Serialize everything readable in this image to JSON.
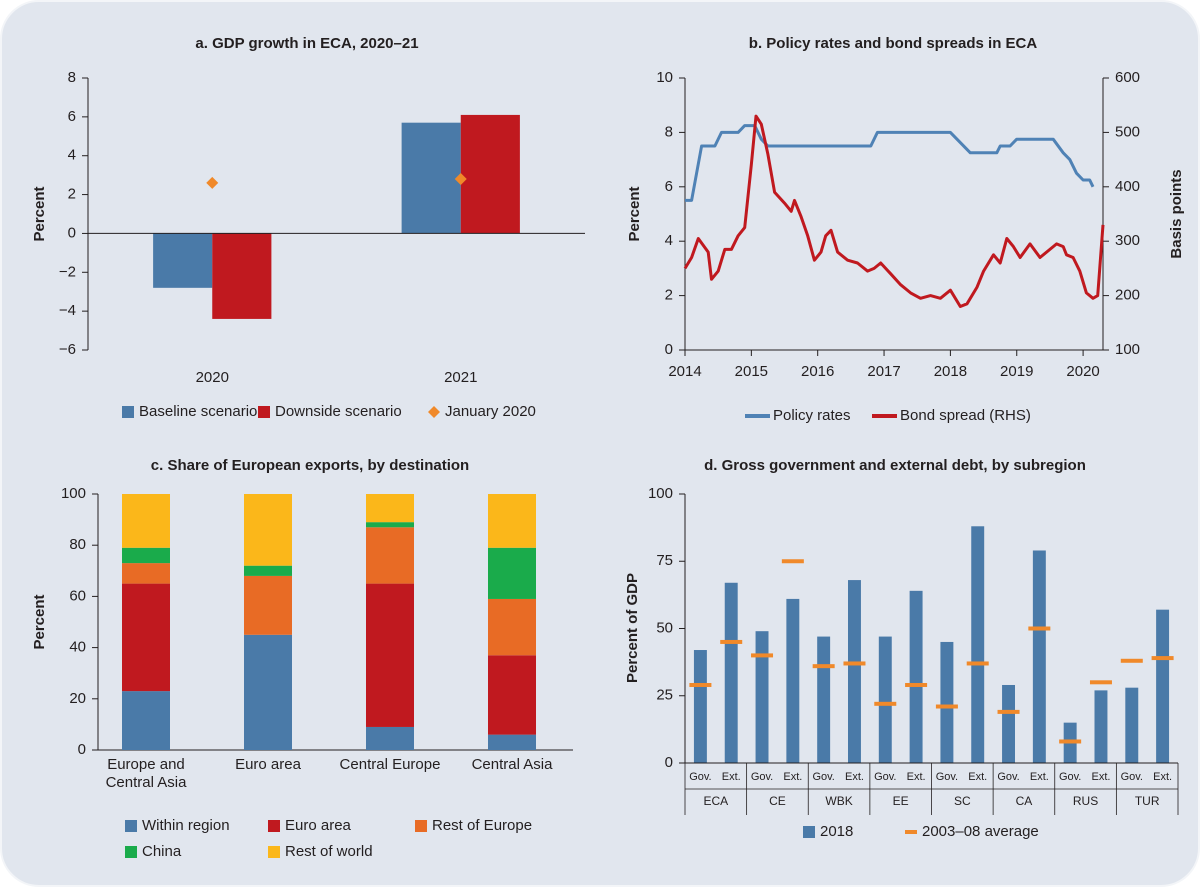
{
  "chart_data": [
    {
      "type": "bar",
      "title": "a. GDP growth in ECA, 2020–21",
      "y_label": "Percent",
      "categories": [
        "2020",
        "2021"
      ],
      "series": [
        {
          "name": "Baseline scenario",
          "color": "#4a7aa8",
          "values": [
            -2.8,
            5.7
          ]
        },
        {
          "name": "Downside scenario",
          "color": "#c0191f",
          "values": [
            -4.4,
            6.1
          ]
        },
        {
          "name": "January 2020",
          "color": "#f0892a",
          "marker": "diamond",
          "values": [
            2.6,
            2.8
          ]
        }
      ],
      "ylim": [
        -6,
        8
      ],
      "yticks": [
        {
          "value": -6,
          "label": "−6"
        },
        {
          "value": -4,
          "label": "−4"
        },
        {
          "value": -2,
          "label": "−2"
        },
        0,
        2,
        4,
        6,
        8
      ]
    },
    {
      "type": "line",
      "title": "b. Policy rates and bond spreads in ECA",
      "y_label": "Percent",
      "y2_label": "Basis points",
      "series": [
        {
          "name": "Policy rates",
          "color": "#4f82b5",
          "x": [
            2014.0,
            2014.1,
            2014.25,
            2014.45,
            2014.55,
            2014.8,
            2014.9,
            2015.05,
            2015.15,
            2015.25,
            2016.8,
            2016.9,
            2018.0,
            2018.1,
            2018.3,
            2018.7,
            2018.75,
            2018.9,
            2019.0,
            2019.55,
            2019.7,
            2019.8,
            2019.9,
            2020.0,
            2020.1,
            2020.15
          ],
          "values": [
            5.5,
            5.5,
            7.5,
            7.5,
            8.0,
            8.0,
            8.25,
            8.25,
            7.75,
            7.5,
            7.5,
            8.0,
            8.0,
            7.75,
            7.25,
            7.25,
            7.5,
            7.5,
            7.75,
            7.75,
            7.25,
            7.0,
            6.5,
            6.25,
            6.25,
            6.0
          ]
        },
        {
          "name": "Bond spread (RHS)",
          "color": "#c0191f",
          "axis": "y2",
          "x": [
            2014.0,
            2014.1,
            2014.2,
            2014.35,
            2014.4,
            2014.5,
            2014.6,
            2014.7,
            2014.8,
            2014.9,
            2015.0,
            2015.07,
            2015.15,
            2015.25,
            2015.35,
            2015.5,
            2015.6,
            2015.65,
            2015.75,
            2015.85,
            2015.95,
            2016.05,
            2016.12,
            2016.2,
            2016.3,
            2016.45,
            2016.6,
            2016.75,
            2016.85,
            2016.95,
            2017.1,
            2017.25,
            2017.4,
            2017.55,
            2017.7,
            2017.85,
            2018.0,
            2018.15,
            2018.25,
            2018.4,
            2018.5,
            2018.65,
            2018.75,
            2018.85,
            2018.95,
            2019.05,
            2019.2,
            2019.35,
            2019.5,
            2019.6,
            2019.7,
            2019.75,
            2019.85,
            2019.95,
            2020.05,
            2020.15,
            2020.22,
            2020.3
          ],
          "values": [
            250,
            270,
            305,
            280,
            230,
            245,
            285,
            285,
            310,
            325,
            440,
            530,
            515,
            460,
            390,
            370,
            355,
            375,
            345,
            310,
            265,
            280,
            310,
            320,
            280,
            265,
            260,
            245,
            250,
            260,
            240,
            220,
            205,
            195,
            200,
            195,
            210,
            180,
            185,
            215,
            245,
            275,
            260,
            305,
            290,
            270,
            295,
            270,
            285,
            295,
            290,
            275,
            270,
            245,
            205,
            195,
            200,
            330
          ]
        }
      ],
      "xlim": [
        2014,
        2020.3
      ],
      "xticks": [
        2014,
        2015,
        2016,
        2017,
        2018,
        2019,
        2020
      ],
      "ylim": [
        0,
        10
      ],
      "yticks": [
        0,
        2,
        4,
        6,
        8,
        10
      ],
      "y2lim": [
        100,
        600
      ],
      "y2ticks": [
        100,
        200,
        300,
        400,
        500,
        600
      ]
    },
    {
      "type": "stacked_bar",
      "title": "c. Share of European exports, by destination",
      "y_label": "Percent",
      "categories": [
        "Europe and Central Asia",
        "Euro area",
        "Central Europe",
        "Central Asia"
      ],
      "series": [
        {
          "name": "Within region",
          "color": "#4a7aa8",
          "values": [
            23,
            45,
            9,
            6
          ]
        },
        {
          "name": "Euro area",
          "color": "#c0191f",
          "values": [
            42,
            0,
            56,
            31
          ]
        },
        {
          "name": "Rest of Europe",
          "color": "#e86b25",
          "values": [
            8,
            23,
            22,
            22
          ]
        },
        {
          "name": "China",
          "color": "#1aab4b",
          "values": [
            6,
            4,
            2,
            20
          ]
        },
        {
          "name": "Rest of world",
          "color": "#fbb71a",
          "values": [
            21,
            28,
            11,
            21
          ]
        }
      ],
      "ylim": [
        0,
        100
      ],
      "yticks": [
        0,
        20,
        40,
        60,
        80,
        100
      ]
    },
    {
      "type": "bar",
      "title": "d. Gross government and external debt, by subregion",
      "y_label": "Percent of GDP",
      "categories": [
        "Gov.",
        "Ext.",
        "Gov.",
        "Ext.",
        "Gov.",
        "Ext.",
        "Gov.",
        "Ext.",
        "Gov.",
        "Ext.",
        "Gov.",
        "Ext.",
        "Gov.",
        "Ext.",
        "Gov.",
        "Ext."
      ],
      "groups": [
        "ECA",
        "CE",
        "WBK",
        "EE",
        "SC",
        "CA",
        "RUS",
        "TUR"
      ],
      "series": [
        {
          "name": "2018",
          "color": "#4a7aa8",
          "values": [
            42,
            67,
            49,
            61,
            47,
            68,
            47,
            64,
            45,
            88,
            29,
            79,
            15,
            27,
            28,
            57
          ]
        },
        {
          "name": "2003–08 average",
          "color": "#f0892a",
          "marker": "dash",
          "values": [
            29,
            45,
            40,
            75,
            36,
            37,
            22,
            29,
            21,
            37,
            19,
            50,
            8,
            30,
            38,
            39
          ]
        }
      ],
      "ylim": [
        0,
        100
      ],
      "yticks": [
        0,
        25,
        50,
        75,
        100
      ]
    }
  ]
}
